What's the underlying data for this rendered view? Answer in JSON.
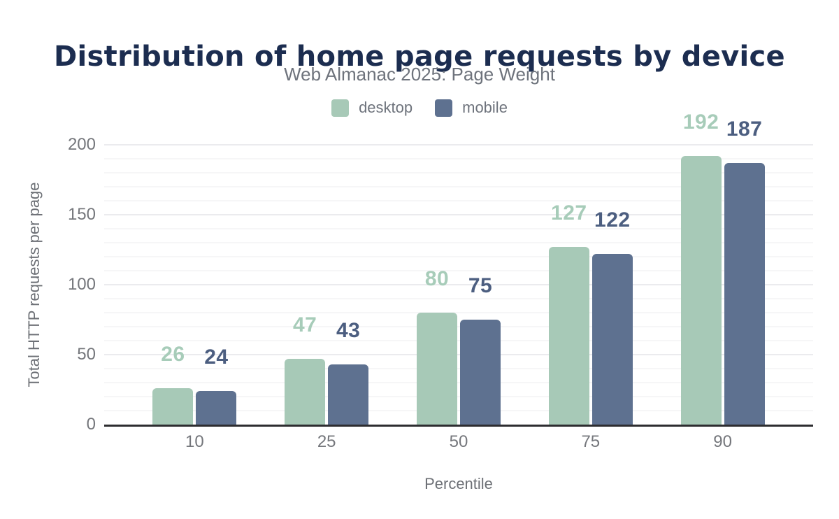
{
  "chart_data": {
    "type": "bar",
    "title": "Distribution of home page requests by device",
    "subtitle": "Web Almanac 2025: Page Weight",
    "xlabel": "Percentile",
    "ylabel": "Total HTTP requests per page",
    "categories": [
      "10",
      "25",
      "50",
      "75",
      "90"
    ],
    "series": [
      {
        "name": "desktop",
        "color": "#a7c9b7",
        "label_color": "#a7ccb9",
        "values": [
          26,
          47,
          80,
          127,
          192
        ]
      },
      {
        "name": "mobile",
        "color": "#5e7190",
        "label_color": "#4c5e80",
        "values": [
          24,
          43,
          75,
          122,
          187
        ]
      }
    ],
    "yticks": [
      0,
      50,
      100,
      150,
      200
    ],
    "ylim": [
      0,
      200
    ],
    "grid": "horizontal minor lines every 10 units, major every 50",
    "legend_position": "top-center",
    "value_labels": "above each bar, colored per series"
  },
  "colors": {
    "title": "#1c2d50",
    "subtitle_text": "#6e737c",
    "tick_text": "#75777c",
    "axis_title_text": "#6d7076",
    "axis_line": "#2d2d30",
    "background": "#ffffff"
  }
}
